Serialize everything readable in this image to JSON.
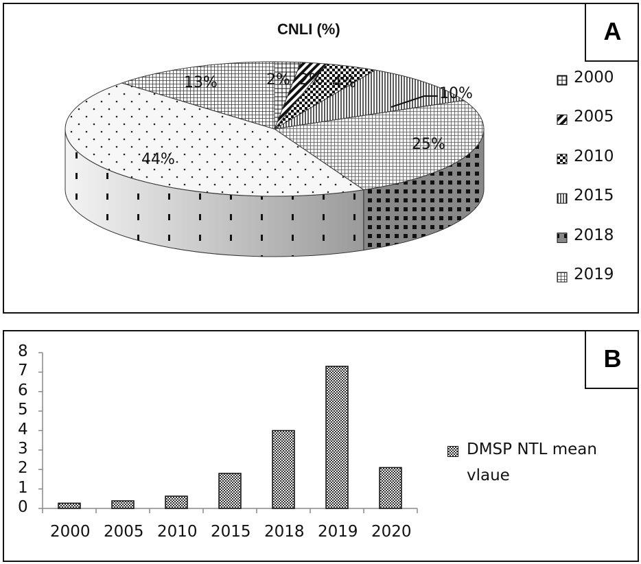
{
  "panel_a_tag": "A",
  "panel_b_tag": "B",
  "chart_data": [
    {
      "type": "pie",
      "style": "3d",
      "title": "CNLI (%)",
      "slices": [
        {
          "category": "2000",
          "value": 2,
          "label": "2%"
        },
        {
          "category": "2005",
          "value": 2,
          "label": "2%"
        },
        {
          "category": "2010",
          "value": 4,
          "label": "4%"
        },
        {
          "category": "2015",
          "value": 10,
          "label": "10%"
        },
        {
          "category": "2018",
          "value": 25,
          "label": "25%"
        },
        {
          "category": "2019",
          "value": 44,
          "label": "44%"
        },
        {
          "category": "",
          "value": 13,
          "label": "13%"
        }
      ],
      "legend": [
        "2000",
        "2005",
        "2010",
        "2015",
        "2018",
        "2019"
      ],
      "legend_position": "right"
    },
    {
      "type": "bar",
      "categories": [
        "2000",
        "2005",
        "2010",
        "2015",
        "2018",
        "2019",
        "2020"
      ],
      "series": [
        {
          "name": "DMSP NTL mean vlaue",
          "values": [
            0.27,
            0.39,
            0.63,
            1.8,
            4.0,
            7.3,
            2.1
          ]
        }
      ],
      "legend_lines": [
        "DMSP NTL mean",
        "vlaue"
      ],
      "legend_position": "right",
      "ylim": [
        0,
        8
      ],
      "yticks": [
        "0",
        "1",
        "2",
        "3",
        "4",
        "5",
        "6",
        "7",
        "8"
      ],
      "grid": false,
      "xlabel": "",
      "ylabel": ""
    }
  ]
}
